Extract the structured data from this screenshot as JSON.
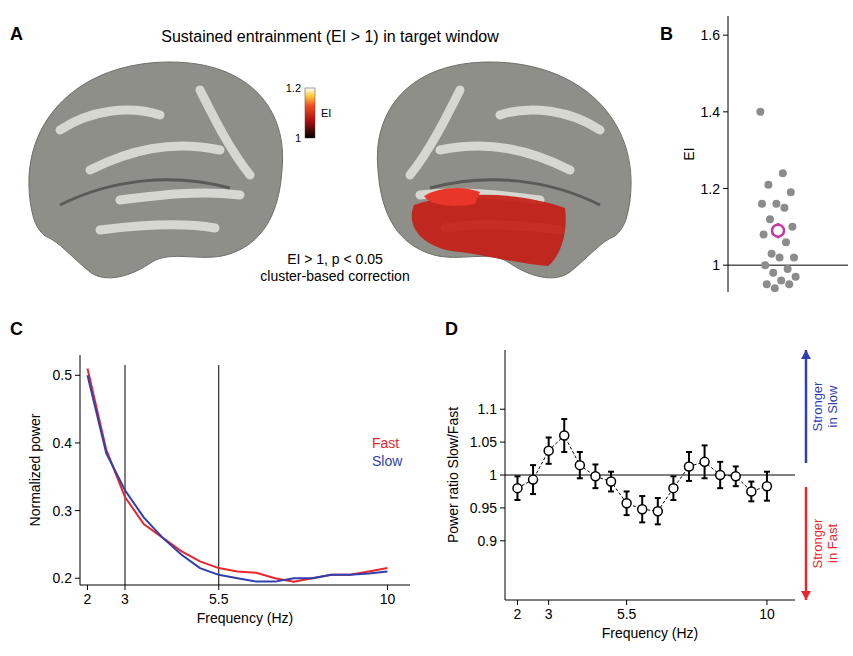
{
  "chart_data": [
    {
      "type": "brain_map",
      "panel": "A",
      "title": "Sustained entrainment (EI > 1) in target window",
      "colorbar": {
        "label": "EI",
        "range": [
          1,
          1.2
        ],
        "ticks": [
          1,
          1.2
        ]
      },
      "annotations": [
        "EI > 1, p < 0.05",
        "cluster-based correction"
      ]
    },
    {
      "type": "strip",
      "panel": "B",
      "y_label": "EI",
      "color": "#8c8c8c",
      "values": [
        1.4,
        1.24,
        1.21,
        1.19,
        1.16,
        1.16,
        1.15,
        1.12,
        1.1,
        1.09,
        1.08,
        1.06,
        1.03,
        1.02,
        1.02,
        1.0,
        0.99,
        0.98,
        0.97,
        0.96,
        0.95,
        0.95,
        0.94
      ],
      "mean": 1.09,
      "error": 0.02,
      "mean_color": "#c23b9c",
      "ylim": [
        0.93,
        1.65
      ],
      "yticks": [
        1,
        1.2,
        1.4,
        1.6
      ],
      "reference_line": 1,
      "tick_labels": "y"
    },
    {
      "type": "line",
      "panel": "C",
      "x_label": "Frequency (Hz)",
      "y_label": "Normalized power",
      "x": [
        2,
        2.5,
        3,
        3.5,
        4,
        4.5,
        5,
        5.5,
        6,
        6.5,
        7,
        7.5,
        8,
        8.5,
        9,
        9.5,
        10
      ],
      "series": [
        {
          "name": "Fast",
          "color": "#e8262b",
          "values": [
            0.51,
            0.39,
            0.32,
            0.28,
            0.26,
            0.24,
            0.225,
            0.215,
            0.21,
            0.208,
            0.2,
            0.195,
            0.2,
            0.205,
            0.205,
            0.21,
            0.215
          ]
        },
        {
          "name": "Slow",
          "color": "#2f3fae",
          "values": [
            0.5,
            0.385,
            0.33,
            0.29,
            0.26,
            0.235,
            0.215,
            0.205,
            0.2,
            0.195,
            0.195,
            0.2,
            0.2,
            0.205,
            0.205,
            0.207,
            0.21
          ]
        }
      ],
      "xlim": [
        1.8,
        10.6
      ],
      "ylim": [
        0.19,
        0.53
      ],
      "xticks": [
        2,
        3,
        5.5,
        10
      ],
      "yticks": [
        0.2,
        0.3,
        0.4,
        0.5
      ],
      "vlines": [
        3,
        5.5
      ],
      "legend": "right"
    },
    {
      "type": "line",
      "panel": "D",
      "x_label": "Frequency (Hz)",
      "y_label": "Power ratio Slow/Fast",
      "x": [
        2,
        2.5,
        3,
        3.5,
        4,
        4.5,
        5,
        5.5,
        6,
        6.5,
        7,
        7.5,
        8,
        8.5,
        9,
        9.5,
        10
      ],
      "values": [
        0.98,
        0.993,
        1.037,
        1.06,
        1.015,
        0.998,
        0.99,
        0.957,
        0.948,
        0.945,
        0.98,
        1.013,
        1.02,
        1.0,
        0.998,
        0.975,
        0.983
      ],
      "errors": [
        0.018,
        0.022,
        0.02,
        0.025,
        0.02,
        0.018,
        0.015,
        0.018,
        0.02,
        0.02,
        0.018,
        0.022,
        0.025,
        0.02,
        0.015,
        0.015,
        0.022
      ],
      "color": "#000000",
      "marker": "circle",
      "line_style": "dashed",
      "xlim": [
        1.6,
        10.9
      ],
      "ylim": [
        0.81,
        1.19
      ],
      "xticks": [
        2,
        3,
        5.5,
        10
      ],
      "yticks": [
        0.9,
        0.95,
        1,
        1.05,
        1.1
      ],
      "reference_line": 1,
      "annotations": [
        {
          "text": "Stronger in Slow",
          "color": "#2f3fae"
        },
        {
          "text": "Stronger in Fast",
          "color": "#e8262b"
        }
      ]
    }
  ]
}
